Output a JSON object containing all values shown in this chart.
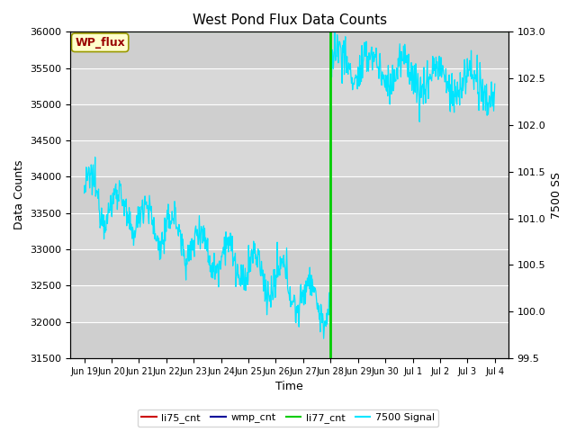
{
  "title": "West Pond Flux Data Counts",
  "ylabel_left": "Data Counts",
  "ylabel_right": "7500 SS",
  "xlabel": "Time",
  "ylim_left": [
    31500,
    36000
  ],
  "ylim_right": [
    99.5,
    103.0
  ],
  "bg_color": "#d8d8d8",
  "annotation_label": "WP_flux",
  "annotation_box_facecolor": "#ffffcc",
  "annotation_box_edgecolor": "#999900",
  "annotation_text_color": "#990000",
  "xtick_labels": [
    "Jun 19",
    "Jun 20",
    "Jun 21",
    "Jun 22",
    "Jun 23",
    "Jun 24",
    "Jun 25",
    "Jun 26",
    "Jun 27",
    "Jun 28",
    "Jun 29",
    "Jun 30",
    "Jul 1",
    "Jul 2",
    "Jul 3",
    "Jul 4"
  ],
  "li77_hline_color": "#00cc00",
  "li77_vline_color": "#00cc00",
  "li77_cnt_value": 36000,
  "li77_vline_x": 10,
  "cyan_line_color": "#00e5ff",
  "li75_cnt_color": "#cc0000",
  "wmp_cnt_color": "#000099",
  "li77_legend_color": "#00cc00",
  "legend_entries": [
    "li75_cnt",
    "wmp_cnt",
    "li77_cnt",
    "7500 Signal"
  ],
  "left_yticks": [
    31500,
    32000,
    32500,
    33000,
    33500,
    34000,
    34500,
    35000,
    35500,
    36000
  ],
  "right_yticks": [
    99.5,
    100.0,
    100.5,
    101.0,
    101.5,
    102.0,
    102.5,
    103.0
  ],
  "xlim": [
    0.5,
    16.5
  ],
  "xtick_positions": [
    1,
    2,
    3,
    4,
    5,
    6,
    7,
    8,
    9,
    10,
    11,
    12,
    13,
    14,
    15,
    16
  ]
}
